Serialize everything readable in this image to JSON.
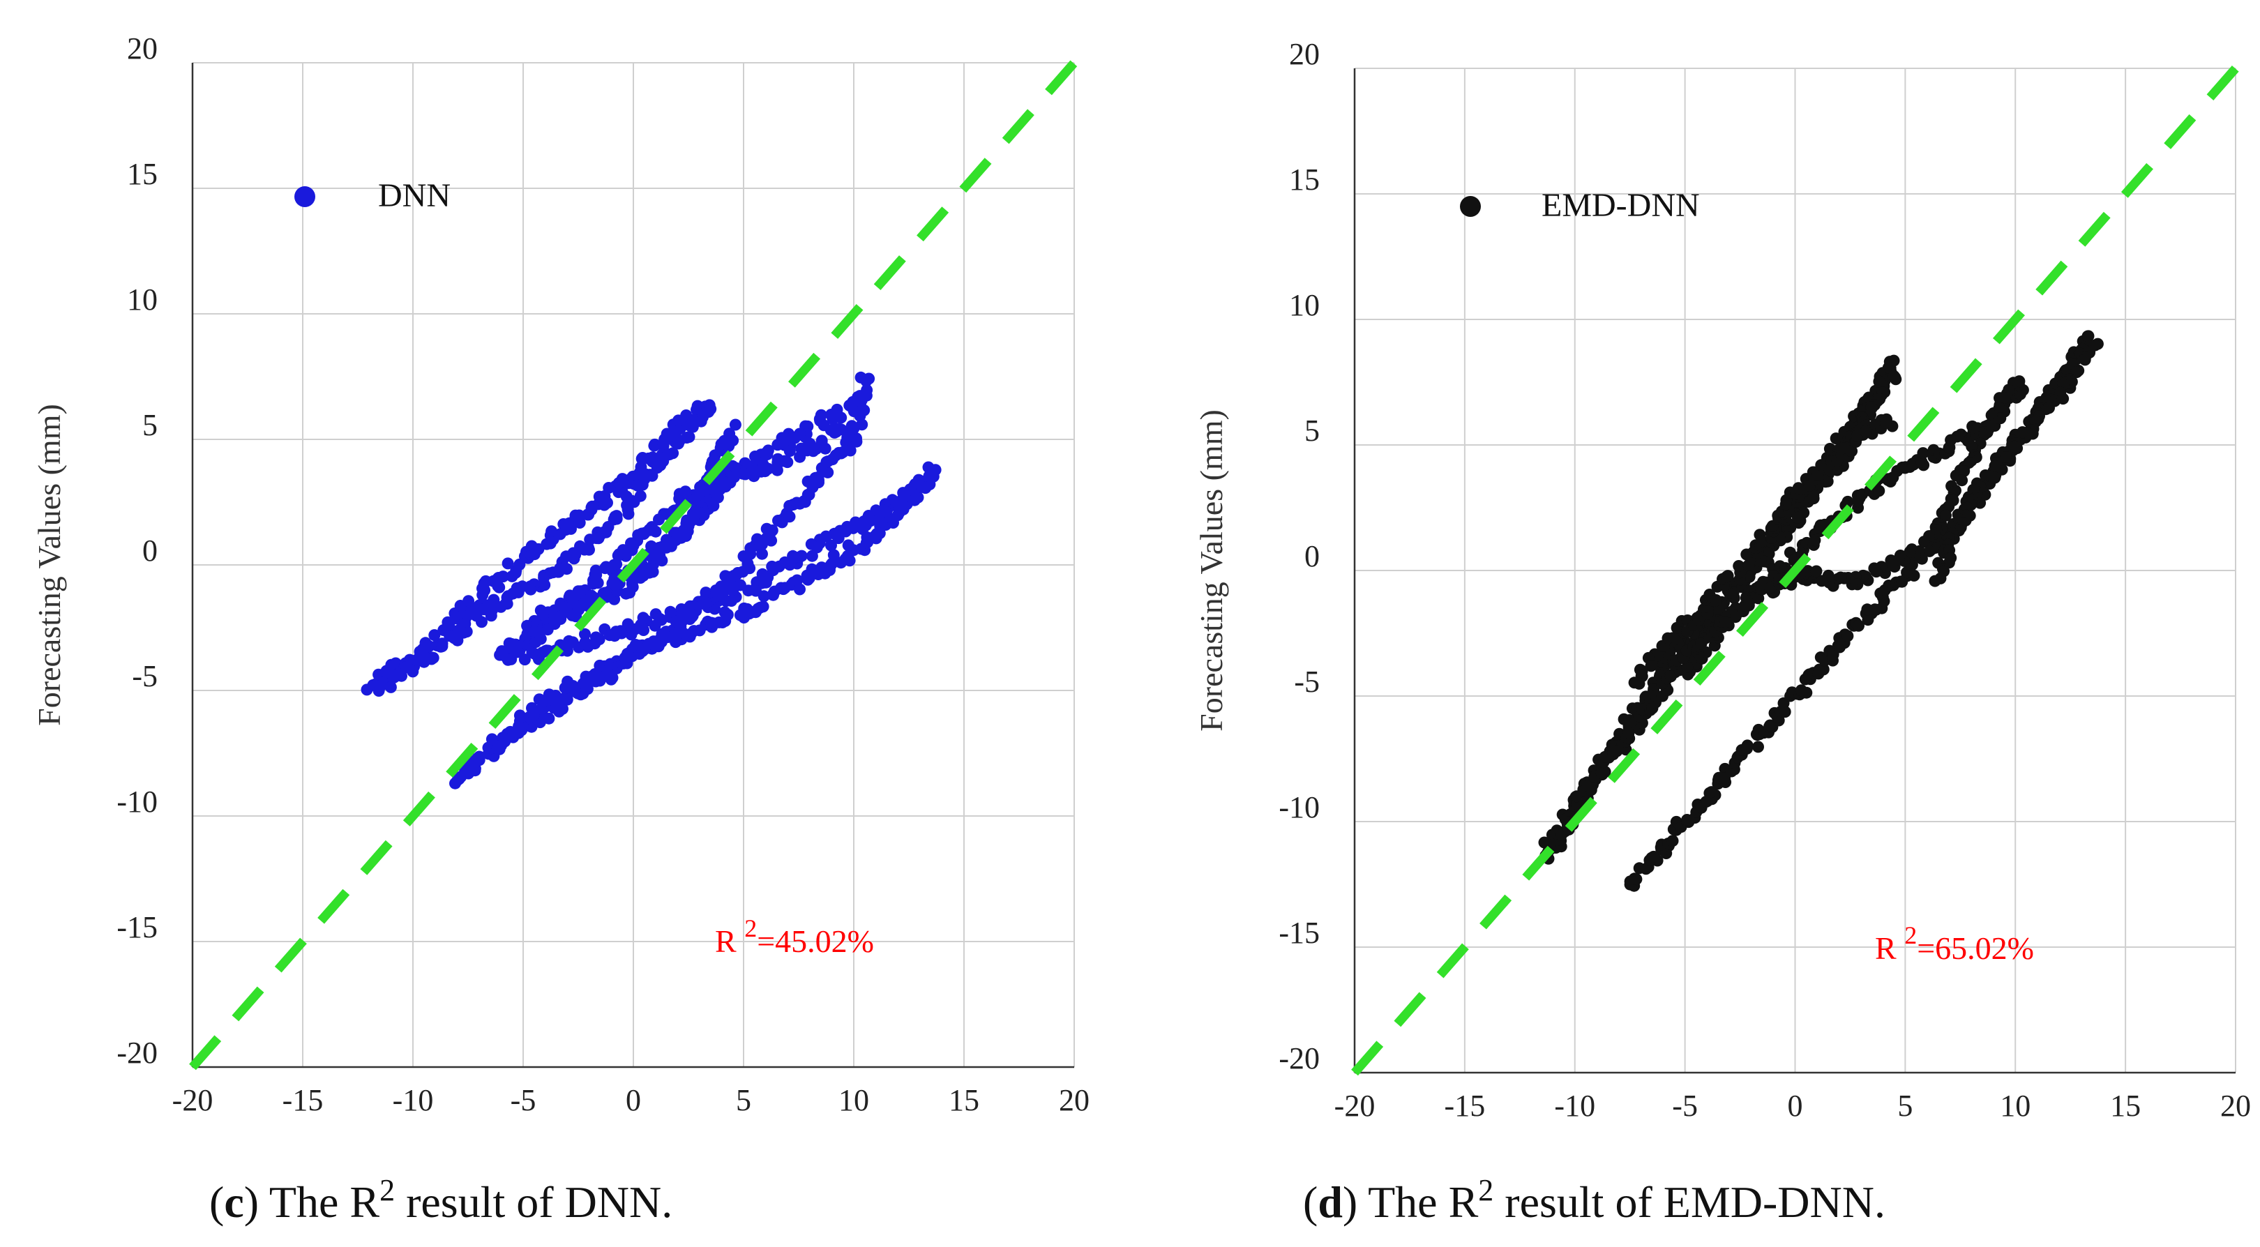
{
  "chart_data": [
    {
      "type": "scatter",
      "panel_label": "c",
      "caption_before": "The R",
      "caption_sup": "2",
      "caption_after": " result of DNN.",
      "legend": "DNN",
      "marker_color": "#1a1adc",
      "r2_label": "R",
      "r2_sup": "2",
      "r2_value": "=45.02%",
      "xlabel": "",
      "ylabel": "Forecasting Values (mm)",
      "xlim": [
        -20,
        20
      ],
      "ylim": [
        -20,
        20
      ],
      "xticks": [
        "-20",
        "-15",
        "-10",
        "-5",
        "0",
        "5",
        "10",
        "15",
        "20"
      ],
      "yticks": [
        "-20",
        "-15",
        "-10",
        "-5",
        "0",
        "5",
        "10",
        "15",
        "20"
      ],
      "reference_line": {
        "from": [
          -20,
          -20
        ],
        "to": [
          20,
          20
        ],
        "color": "#33e02a",
        "style": "dashed"
      },
      "loops": [
        {
          "x": [
            -12,
            -9,
            -6,
            -3,
            0,
            2,
            3.5
          ],
          "y": [
            -5,
            -3,
            -0.5,
            1.5,
            3.5,
            5.5,
            6.5
          ]
        },
        {
          "x": [
            3.5,
            1,
            -1,
            -4,
            -7,
            -9,
            -11.5
          ],
          "y": [
            6.2,
            4,
            1.5,
            -0.5,
            -2,
            -3.5,
            -4.8
          ]
        },
        {
          "x": [
            -8,
            -5,
            -2,
            1,
            4,
            7,
            10,
            10.5
          ],
          "y": [
            -8.5,
            -6.5,
            -4.8,
            -3,
            -1,
            2,
            5,
            7.5
          ]
        },
        {
          "x": [
            10.5,
            8,
            5,
            2,
            -1,
            -3,
            -6
          ],
          "y": [
            6.5,
            5.5,
            4,
            2.5,
            0,
            -1.5,
            -3.5
          ]
        },
        {
          "x": [
            -7.5,
            -4,
            0,
            3,
            6,
            9,
            12,
            13.8
          ],
          "y": [
            -8,
            -5.5,
            -3.5,
            -2.5,
            -1.5,
            0,
            2,
            4
          ]
        },
        {
          "x": [
            13.5,
            11,
            8,
            5,
            2,
            -2,
            -5
          ],
          "y": [
            3.5,
            2,
            0.5,
            -1,
            -2,
            -3,
            -3.8
          ]
        },
        {
          "x": [
            -4,
            -1,
            1,
            3,
            4.5,
            6.5,
            10
          ],
          "y": [
            -2,
            -1,
            0.5,
            2,
            3.5,
            4,
            5.5
          ]
        },
        {
          "x": [
            -6,
            -3,
            0,
            2.5,
            4.5
          ],
          "y": [
            -3.8,
            -2,
            -0.8,
            1.5,
            5.5
          ]
        }
      ]
    },
    {
      "type": "scatter",
      "panel_label": "d",
      "caption_before": "The R",
      "caption_sup": "2",
      "caption_after": " result of EMD-DNN.",
      "legend": "EMD-DNN",
      "marker_color": "#111111",
      "r2_label": "R",
      "r2_sup": "2",
      "r2_value": "=65.02%",
      "xlabel": "",
      "ylabel": "Forecasting Values (mm)",
      "xlim": [
        -20,
        20
      ],
      "ylim": [
        -20,
        20
      ],
      "xticks": [
        "-20",
        "-15",
        "-10",
        "-5",
        "0",
        "5",
        "10",
        "15",
        "20"
      ],
      "yticks": [
        "-20",
        "-15",
        "-10",
        "-5",
        "0",
        "5",
        "10",
        "15",
        "20"
      ],
      "reference_line": {
        "from": [
          -20,
          -20
        ],
        "to": [
          20,
          20
        ],
        "color": "#33e02a",
        "style": "dashed"
      },
      "loops": [
        {
          "x": [
            -11.5,
            -9,
            -6,
            -3,
            0,
            2,
            4,
            4.5
          ],
          "y": [
            -11.5,
            -8,
            -4,
            -1,
            2.5,
            5,
            7.5,
            8.5
          ]
        },
        {
          "x": [
            4.5,
            2.5,
            0,
            -3,
            -5.5,
            -7.5
          ],
          "y": [
            8,
            5,
            2,
            -1,
            -3,
            -4.5
          ]
        },
        {
          "x": [
            -7.5,
            -5,
            -2,
            1,
            4,
            7,
            10,
            13.5
          ],
          "y": [
            -12.5,
            -10,
            -7,
            -4,
            -1,
            1.5,
            5,
            9.5
          ]
        },
        {
          "x": [
            13.5,
            12,
            10,
            8,
            7,
            6.5
          ],
          "y": [
            9,
            7,
            5,
            3,
            1,
            -0.5
          ]
        },
        {
          "x": [
            -5,
            -3,
            0,
            3,
            6,
            9,
            10.5
          ],
          "y": [
            -4,
            -2,
            0.5,
            3,
            4.5,
            6,
            7.5
          ]
        },
        {
          "x": [
            10,
            8,
            6,
            4,
            2,
            0,
            -2
          ],
          "y": [
            7.5,
            4.5,
            1,
            0,
            -0.5,
            0,
            -1
          ]
        },
        {
          "x": [
            -6,
            -4,
            -2,
            0,
            2,
            3,
            4.5
          ],
          "y": [
            -3,
            -1.5,
            0.5,
            3,
            4.5,
            5.5,
            6
          ]
        },
        {
          "x": [
            -11,
            -8,
            -5,
            -2,
            1
          ],
          "y": [
            -11,
            -7,
            -3.5,
            -1,
            0
          ]
        }
      ]
    }
  ]
}
